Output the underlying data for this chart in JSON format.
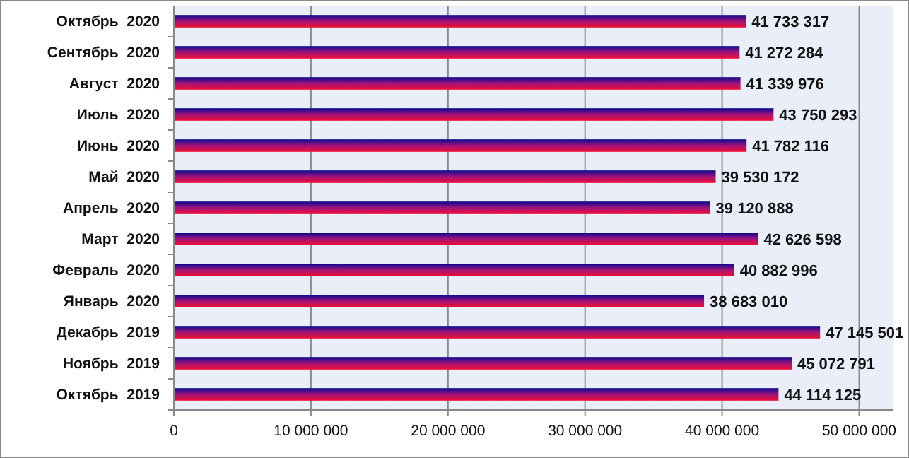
{
  "chart_data": {
    "type": "bar",
    "orientation": "horizontal",
    "categories": [
      "Октябрь  2020",
      "Сентябрь  2020",
      "Август  2020",
      "Июль  2020",
      "Июнь  2020",
      "Май  2020",
      "Апрель  2020",
      "Март  2020",
      "Февраль  2020",
      "Январь  2020",
      "Декабрь  2019",
      "Ноябрь  2019",
      "Октябрь  2019"
    ],
    "values": [
      41733317,
      41272284,
      41339976,
      43750293,
      41782116,
      39530172,
      39120888,
      42626598,
      40882996,
      38683010,
      47145501,
      45072791,
      44114125
    ],
    "color": "#a0147a",
    "xlim": [
      0,
      52500000
    ],
    "xticks": [
      {
        "value": 0,
        "label": "0"
      },
      {
        "value": 10000000,
        "label": "10 000 000"
      },
      {
        "value": 20000000,
        "label": "20 000 000"
      },
      {
        "value": 30000000,
        "label": "30 000 000"
      },
      {
        "value": 40000000,
        "label": "40 000 000"
      },
      {
        "value": 50000000,
        "label": "50 000 000"
      }
    ],
    "grid": "x",
    "data_labels": true
  }
}
